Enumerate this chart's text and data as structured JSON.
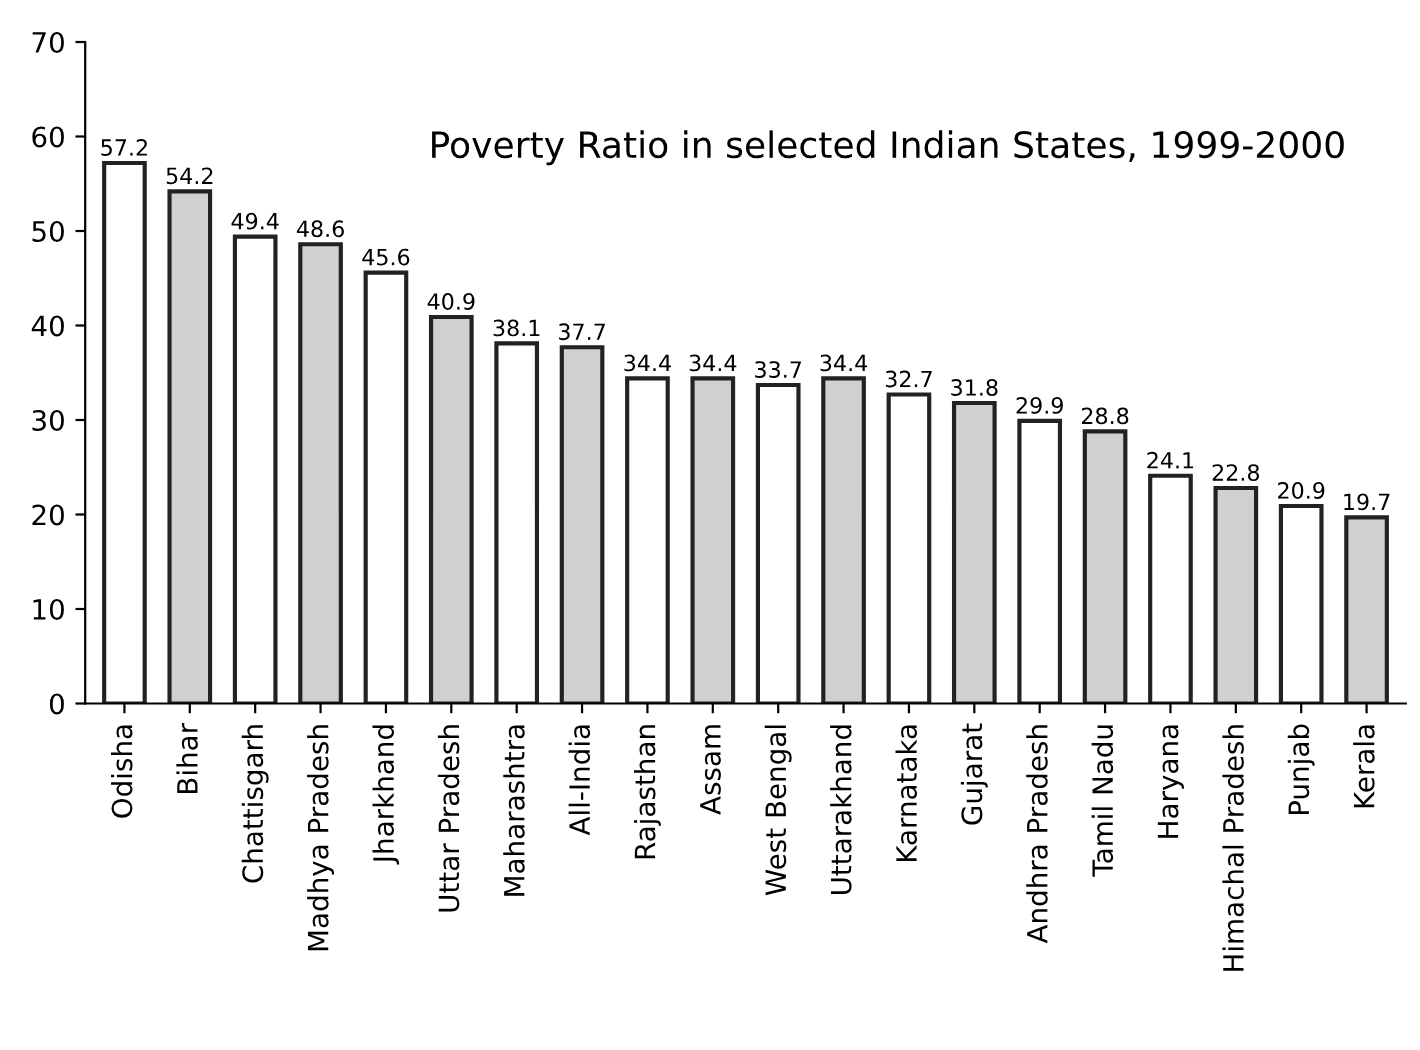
{
  "chart_data": {
    "type": "bar",
    "title": "Poverty Ratio in selected Indian States, 1999-2000",
    "categories": [
      "Odisha",
      "Bihar",
      "Chattisgarh",
      "Madhya Pradesh",
      "Jharkhand",
      "Uttar Pradesh",
      "Maharashtra",
      "All-India",
      "Rajasthan",
      "Assam",
      "West Bengal",
      "Uttarakhand",
      "Karnataka",
      "Gujarat",
      "Andhra Pradesh",
      "Tamil Nadu",
      "Haryana",
      "Himachal Pradesh",
      "Punjab",
      "Kerala"
    ],
    "values": [
      57.2,
      54.2,
      49.4,
      48.6,
      45.6,
      40.9,
      38.1,
      37.7,
      34.4,
      34.4,
      33.7,
      34.4,
      32.7,
      31.8,
      29.9,
      28.8,
      24.1,
      22.8,
      20.9,
      19.7
    ],
    "colors": [
      "#ffffff",
      "#d0d0d0",
      "#ffffff",
      "#d0d0d0",
      "#ffffff",
      "#d0d0d0",
      "#ffffff",
      "#d0d0d0",
      "#ffffff",
      "#d0d0d0",
      "#ffffff",
      "#d0d0d0",
      "#ffffff",
      "#d0d0d0",
      "#ffffff",
      "#d0d0d0",
      "#ffffff",
      "#d0d0d0",
      "#ffffff",
      "#d0d0d0"
    ],
    "ylim": [
      0,
      70
    ],
    "yticks": [
      0,
      10,
      20,
      30,
      40,
      50,
      60,
      70
    ],
    "grid": false,
    "data_labels": true
  }
}
